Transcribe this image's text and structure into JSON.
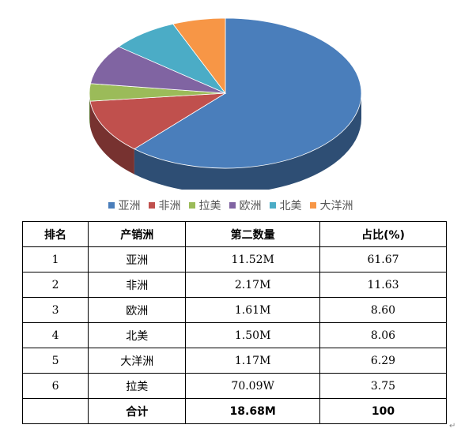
{
  "chart_data": {
    "type": "pie",
    "categories": [
      "亚洲",
      "非洲",
      "拉美",
      "欧洲",
      "北美",
      "大洋洲"
    ],
    "values": [
      61.67,
      11.63,
      3.75,
      8.6,
      8.06,
      6.29
    ],
    "colors": [
      "#4a7ebb",
      "#c0504d",
      "#9bbb59",
      "#8064a2",
      "#4bacc6",
      "#f79646"
    ],
    "legend": [
      "亚洲",
      "非洲",
      "拉美",
      "欧洲",
      "北美",
      "大洋洲"
    ],
    "legend_position": "bottom",
    "style": "3d"
  },
  "table": {
    "headers": [
      "排名",
      "产销洲",
      "第二数量",
      "占比(%)"
    ],
    "rows": [
      [
        "1",
        "亚洲",
        "11.52M",
        "61.67"
      ],
      [
        "2",
        "非洲",
        "2.17M",
        "11.63"
      ],
      [
        "3",
        "欧洲",
        "1.61M",
        "8.60"
      ],
      [
        "4",
        "北美",
        "1.50M",
        "8.06"
      ],
      [
        "5",
        "大洋洲",
        "1.17M",
        "6.29"
      ],
      [
        "6",
        "拉美",
        "70.09W",
        "3.75"
      ]
    ],
    "total": [
      "",
      "合计",
      "18.68M",
      "100"
    ]
  },
  "paragraph_mark": "↵"
}
